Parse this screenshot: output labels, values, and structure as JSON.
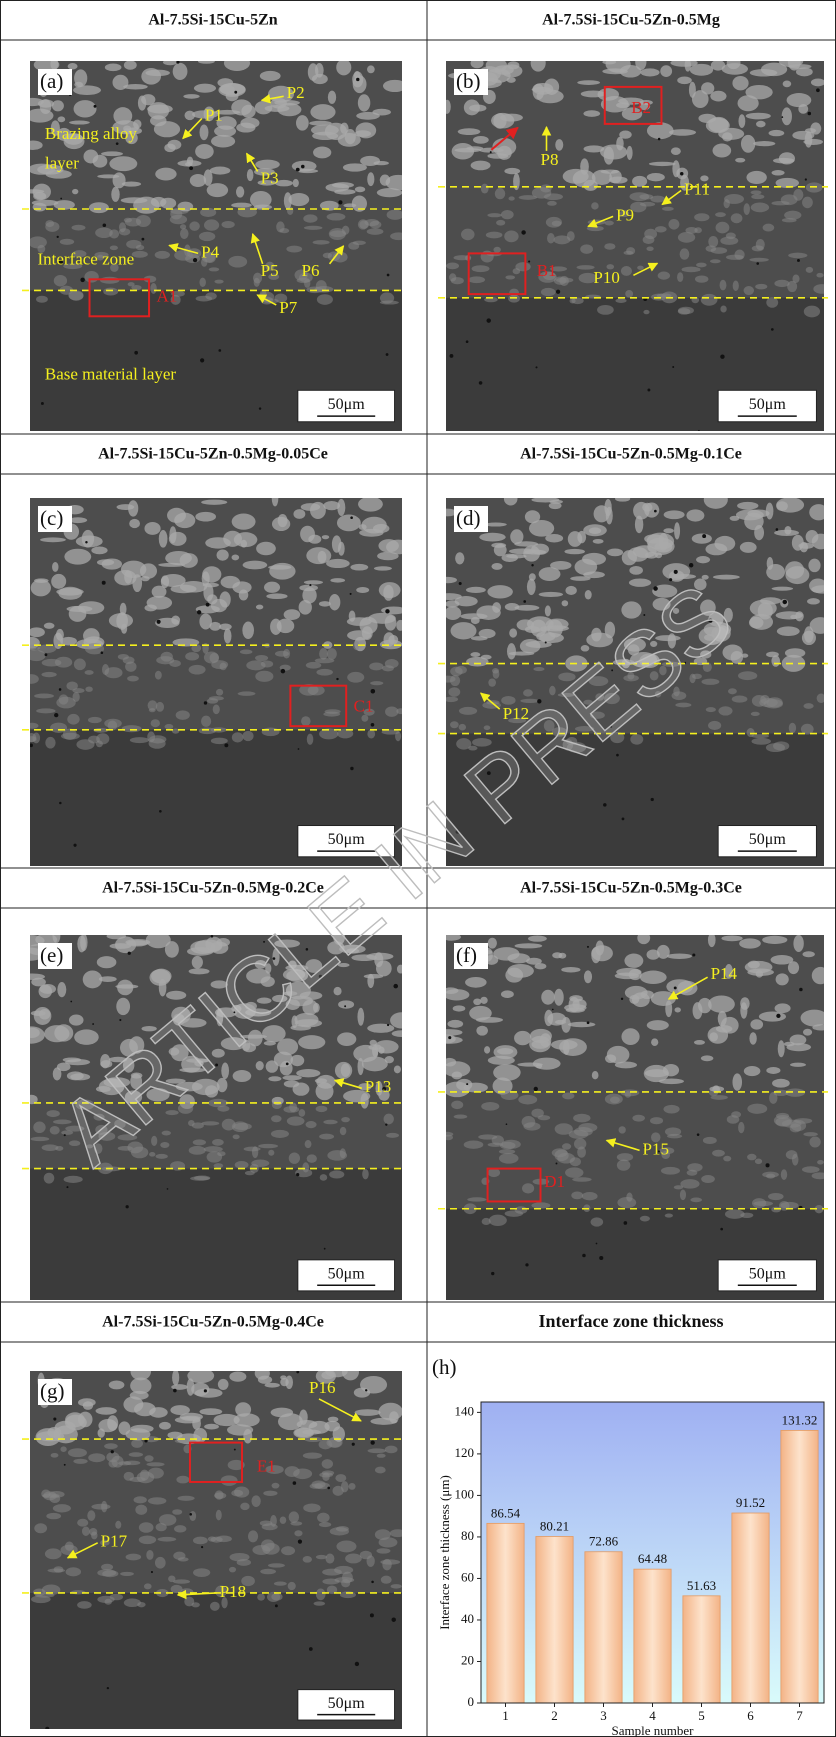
{
  "panels": [
    {
      "title": "Al-7.5Si-15Cu-5Zn",
      "label": "(a)",
      "scale_bar": "50μm",
      "annotations": [
        "P1",
        "P2",
        "P3",
        "P4",
        "P5",
        "P6",
        "P7",
        "A1",
        "Brazing alloy",
        "layer",
        "Interface zone",
        "Base material layer"
      ]
    },
    {
      "title": "Al-7.5Si-15Cu-5Zn-0.5Mg",
      "label": "(b)",
      "scale_bar": "50μm",
      "annotations": [
        "B2",
        "P8",
        "P9",
        "P10",
        "P11",
        "B1"
      ]
    },
    {
      "title": "Al-7.5Si-15Cu-5Zn-0.5Mg-0.05Ce",
      "label": "(c)",
      "scale_bar": "50μm",
      "annotations": [
        "C1"
      ]
    },
    {
      "title": "Al-7.5Si-15Cu-5Zn-0.5Mg-0.1Ce",
      "label": "(d)",
      "scale_bar": "50μm",
      "annotations": [
        "P12"
      ]
    },
    {
      "title": "Al-7.5Si-15Cu-5Zn-0.5Mg-0.2Ce",
      "label": "(e)",
      "scale_bar": "50μm",
      "annotations": [
        "P13"
      ]
    },
    {
      "title": "Al-7.5Si-15Cu-5Zn-0.5Mg-0.3Ce",
      "label": "(f)",
      "scale_bar": "50μm",
      "annotations": [
        "P14",
        "P15",
        "D1"
      ]
    },
    {
      "title": "Al-7.5Si-15Cu-5Zn-0.5Mg-0.4Ce",
      "label": "(g)",
      "scale_bar": "50μm",
      "annotations": [
        "P16",
        "E1",
        "P17",
        "P18"
      ]
    }
  ],
  "chart_panel": {
    "title": "Interface zone thickness",
    "label": "(h)"
  },
  "chart_data": {
    "type": "bar",
    "categories": [
      "1",
      "2",
      "3",
      "4",
      "5",
      "6",
      "7"
    ],
    "values": [
      86.54,
      80.21,
      72.86,
      64.48,
      51.63,
      91.52,
      131.32
    ],
    "color": "#f8c79c",
    "edge_color": "#e39a62",
    "x_label": "Sample number",
    "y_label": "Interface zone thickness (μm)",
    "ylim": [
      0,
      145
    ],
    "yticks": [
      0,
      20,
      40,
      60,
      80,
      100,
      120,
      140
    ]
  },
  "watermark": "ARTICLE IN PRESS"
}
